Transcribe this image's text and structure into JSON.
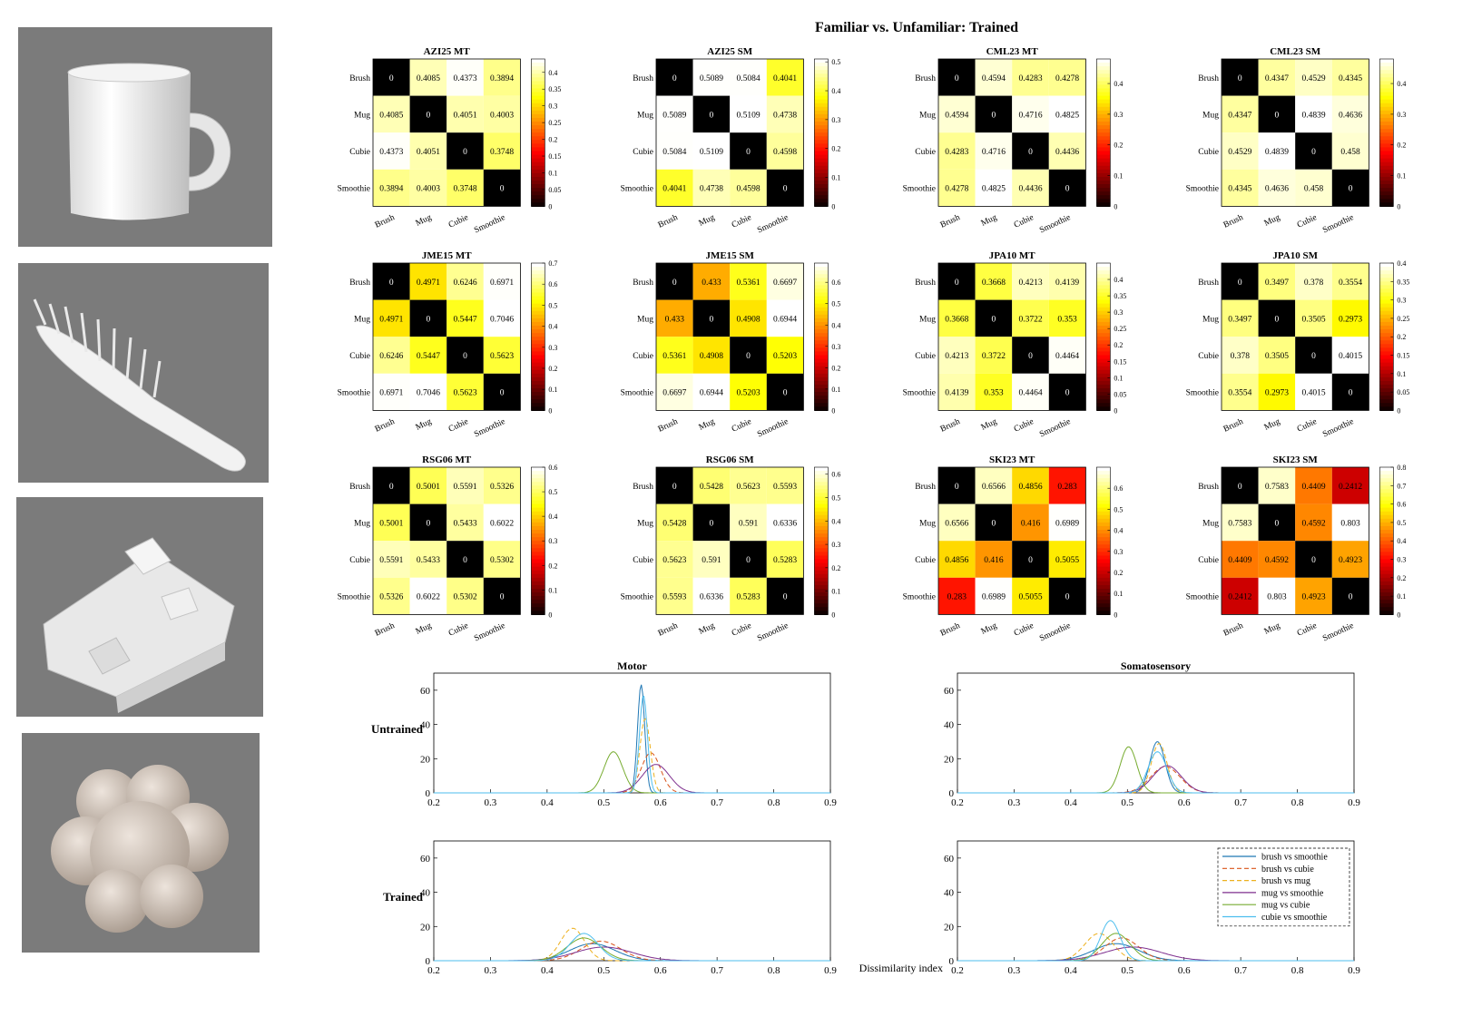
{
  "page_title": "Familiar vs. Unfamiliar: Trained",
  "photos": [
    {
      "name": "mug",
      "icon": "mug-photo"
    },
    {
      "name": "brush",
      "icon": "brush-photo"
    },
    {
      "name": "cubie",
      "icon": "cubie-photo"
    },
    {
      "name": "smoothie",
      "icon": "smoothie-photo"
    }
  ],
  "chart_data": [
    {
      "type": "heatmap",
      "title": "AZI25 MT",
      "labels": [
        "Brush",
        "Mug",
        "Cubie",
        "Smoothie"
      ],
      "matrix": [
        [
          0,
          0.4085,
          0.4373,
          0.3894
        ],
        [
          0.4085,
          0,
          0.4051,
          0.4003
        ],
        [
          0.4373,
          0.4051,
          0,
          0.3748
        ],
        [
          0.3894,
          0.4003,
          0.3748,
          0
        ]
      ],
      "cbar_ticks": [
        "0.4",
        "0.35",
        "0.3",
        "0.25",
        "0.2",
        "0.15",
        "0.1",
        "0.05",
        "0"
      ],
      "cmax": 0.44
    },
    {
      "type": "heatmap",
      "title": "AZI25 SM",
      "labels": [
        "Brush",
        "Mug",
        "Cubie",
        "Smoothie"
      ],
      "matrix": [
        [
          0,
          0.5089,
          0.5084,
          0.4041
        ],
        [
          0.5089,
          0,
          0.5109,
          0.4738
        ],
        [
          0.5084,
          0.5109,
          0,
          0.4598
        ],
        [
          0.4041,
          0.4738,
          0.4598,
          0
        ]
      ],
      "cbar_ticks": [
        "0.5",
        "0.4",
        "0.3",
        "0.2",
        "0.1",
        "0"
      ],
      "cmax": 0.51
    },
    {
      "type": "heatmap",
      "title": "CML23 MT",
      "labels": [
        "Brush",
        "Mug",
        "Cubie",
        "Smoothie"
      ],
      "matrix": [
        [
          0,
          0.4594,
          0.4283,
          0.4278
        ],
        [
          0.4594,
          0,
          0.4716,
          0.4825
        ],
        [
          0.4283,
          0.4716,
          0,
          0.4436
        ],
        [
          0.4278,
          0.4825,
          0.4436,
          0
        ]
      ],
      "cbar_ticks": [
        "0.4",
        "0.3",
        "0.2",
        "0.1",
        "0"
      ],
      "cmax": 0.48
    },
    {
      "type": "heatmap",
      "title": "CML23 SM",
      "labels": [
        "Brush",
        "Mug",
        "Cubie",
        "Smoothie"
      ],
      "matrix": [
        [
          0,
          0.4347,
          0.4529,
          0.4345
        ],
        [
          0.4347,
          0,
          0.4839,
          0.4636
        ],
        [
          0.4529,
          0.4839,
          0,
          0.458
        ],
        [
          0.4345,
          0.4636,
          0.458,
          0
        ]
      ],
      "cbar_ticks": [
        "0.4",
        "0.3",
        "0.2",
        "0.1",
        "0"
      ],
      "cmax": 0.48
    },
    {
      "type": "heatmap",
      "title": "JME15 MT",
      "labels": [
        "Brush",
        "Mug",
        "Cubie",
        "Smoothie"
      ],
      "matrix": [
        [
          0,
          0.4971,
          0.6246,
          0.6971
        ],
        [
          0.4971,
          0,
          0.5447,
          0.7046
        ],
        [
          0.6246,
          0.5447,
          0,
          0.5623
        ],
        [
          0.6971,
          0.7046,
          0.5623,
          0
        ]
      ],
      "cbar_ticks": [
        "0.7",
        "0.6",
        "0.5",
        "0.4",
        "0.3",
        "0.2",
        "0.1",
        "0"
      ],
      "cmax": 0.7
    },
    {
      "type": "heatmap",
      "title": "JME15 SM",
      "labels": [
        "Brush",
        "Mug",
        "Cubie",
        "Smoothie"
      ],
      "matrix": [
        [
          0,
          0.433,
          0.5361,
          0.6697
        ],
        [
          0.433,
          0,
          0.4908,
          0.6944
        ],
        [
          0.5361,
          0.4908,
          0,
          0.5203
        ],
        [
          0.6697,
          0.6944,
          0.5203,
          0
        ]
      ],
      "cbar_ticks": [
        "0.6",
        "0.5",
        "0.4",
        "0.3",
        "0.2",
        "0.1",
        "0"
      ],
      "cmax": 0.69
    },
    {
      "type": "heatmap",
      "title": "JPA10 MT",
      "labels": [
        "Brush",
        "Mug",
        "Cubie",
        "Smoothie"
      ],
      "matrix": [
        [
          0,
          0.3668,
          0.4213,
          0.4139
        ],
        [
          0.3668,
          0,
          0.3722,
          0.353
        ],
        [
          0.4213,
          0.3722,
          0,
          0.4464
        ],
        [
          0.4139,
          0.353,
          0.4464,
          0
        ]
      ],
      "cbar_ticks": [
        "0.4",
        "0.35",
        "0.3",
        "0.25",
        "0.2",
        "0.15",
        "0.1",
        "0.05",
        "0"
      ],
      "cmax": 0.45
    },
    {
      "type": "heatmap",
      "title": "JPA10 SM",
      "labels": [
        "Brush",
        "Mug",
        "Cubie",
        "Smoothie"
      ],
      "matrix": [
        [
          0,
          0.3497,
          0.378,
          0.3554
        ],
        [
          0.3497,
          0,
          0.3505,
          0.2973
        ],
        [
          0.378,
          0.3505,
          0,
          0.4015
        ],
        [
          0.3554,
          0.2973,
          0.4015,
          0
        ]
      ],
      "cbar_ticks": [
        "0.4",
        "0.35",
        "0.3",
        "0.25",
        "0.2",
        "0.15",
        "0.1",
        "0.05",
        "0"
      ],
      "cmax": 0.4
    },
    {
      "type": "heatmap",
      "title": "RSG06 MT",
      "labels": [
        "Brush",
        "Mug",
        "Cubie",
        "Smoothie"
      ],
      "matrix": [
        [
          0,
          0.5001,
          0.5591,
          0.5326
        ],
        [
          0.5001,
          0,
          0.5433,
          0.6022
        ],
        [
          0.5591,
          0.5433,
          0,
          0.5302
        ],
        [
          0.5326,
          0.6022,
          0.5302,
          0
        ]
      ],
      "cbar_ticks": [
        "0.6",
        "0.5",
        "0.4",
        "0.3",
        "0.2",
        "0.1",
        "0"
      ],
      "cmax": 0.6
    },
    {
      "type": "heatmap",
      "title": "RSG06 SM",
      "labels": [
        "Brush",
        "Mug",
        "Cubie",
        "Smoothie"
      ],
      "matrix": [
        [
          0,
          0.5428,
          0.5623,
          0.5593
        ],
        [
          0.5428,
          0,
          0.591,
          0.6336
        ],
        [
          0.5623,
          0.591,
          0,
          0.5283
        ],
        [
          0.5593,
          0.6336,
          0.5283,
          0
        ]
      ],
      "cbar_ticks": [
        "0.6",
        "0.5",
        "0.4",
        "0.3",
        "0.2",
        "0.1",
        "0"
      ],
      "cmax": 0.63
    },
    {
      "type": "heatmap",
      "title": "SKI23 MT",
      "labels": [
        "Brush",
        "Mug",
        "Cubie",
        "Smoothie"
      ],
      "matrix": [
        [
          0,
          0.6566,
          0.4856,
          0.283
        ],
        [
          0.6566,
          0,
          0.416,
          0.6989
        ],
        [
          0.4856,
          0.416,
          0,
          0.5055
        ],
        [
          0.283,
          0.6989,
          0.5055,
          0
        ]
      ],
      "cbar_ticks": [
        "0.6",
        "0.5",
        "0.4",
        "0.3",
        "0.2",
        "0.1",
        "0"
      ],
      "cmax": 0.7
    },
    {
      "type": "heatmap",
      "title": "SKI23 SM",
      "labels": [
        "Brush",
        "Mug",
        "Cubie",
        "Smoothie"
      ],
      "matrix": [
        [
          0,
          0.7583,
          0.4409,
          0.2412
        ],
        [
          0.7583,
          0,
          0.4592,
          0.803
        ],
        [
          0.4409,
          0.4592,
          0,
          0.4923
        ],
        [
          0.2412,
          0.803,
          0.4923,
          0
        ]
      ],
      "cbar_ticks": [
        "0.8",
        "0.7",
        "0.6",
        "0.5",
        "0.4",
        "0.3",
        "0.2",
        "0.1",
        "0"
      ],
      "cmax": 0.8
    },
    {
      "type": "line",
      "title": "Motor",
      "row_label": "Untrained",
      "xlim": [
        0.2,
        0.9
      ],
      "ylim": [
        0,
        70
      ],
      "xticks": [
        "0.2",
        "0.3",
        "0.4",
        "0.5",
        "0.6",
        "0.7",
        "0.8",
        "0.9"
      ],
      "yticks": [
        "0",
        "20",
        "40",
        "60"
      ],
      "series": [
        {
          "name": "brush vs smoothie",
          "color": "#1f77b4",
          "dash": "",
          "mu": 0.566,
          "sigma": 0.0063
        },
        {
          "name": "brush vs cubie",
          "color": "#d95319",
          "dash": "5,3",
          "mu": 0.583,
          "sigma": 0.017
        },
        {
          "name": "brush vs mug",
          "color": "#edb120",
          "dash": "5,3",
          "mu": 0.573,
          "sigma": 0.0092
        },
        {
          "name": "mug vs smoothie",
          "color": "#7e2f8e",
          "dash": "",
          "mu": 0.592,
          "sigma": 0.024
        },
        {
          "name": "mug vs cubie",
          "color": "#77ac30",
          "dash": "",
          "mu": 0.517,
          "sigma": 0.0166
        },
        {
          "name": "cubie vs smoothie",
          "color": "#4dbeee",
          "dash": "",
          "mu": 0.57,
          "sigma": 0.007
        }
      ]
    },
    {
      "type": "line",
      "title": "Somatosensory",
      "row_label": "",
      "xlim": [
        0.2,
        0.9
      ],
      "ylim": [
        0,
        70
      ],
      "xticks": [
        "0.2",
        "0.3",
        "0.4",
        "0.5",
        "0.6",
        "0.7",
        "0.8",
        "0.9"
      ],
      "yticks": [
        "0",
        "20",
        "40",
        "60"
      ],
      "series": [
        {
          "name": "brush vs smoothie",
          "color": "#1f77b4",
          "dash": "",
          "mu": 0.553,
          "sigma": 0.0133
        },
        {
          "name": "brush vs cubie",
          "color": "#d95319",
          "dash": "5,3",
          "mu": 0.567,
          "sigma": 0.026
        },
        {
          "name": "brush vs mug",
          "color": "#edb120",
          "dash": "5,3",
          "mu": 0.556,
          "sigma": 0.0138
        },
        {
          "name": "mug vs smoothie",
          "color": "#7e2f8e",
          "dash": "",
          "mu": 0.57,
          "sigma": 0.025
        },
        {
          "name": "mug vs cubie",
          "color": "#77ac30",
          "dash": "",
          "mu": 0.502,
          "sigma": 0.0148
        },
        {
          "name": "cubie vs smoothie",
          "color": "#4dbeee",
          "dash": "",
          "mu": 0.553,
          "sigma": 0.0166
        }
      ]
    },
    {
      "type": "line",
      "title": "",
      "row_label": "Trained",
      "xlim": [
        0.2,
        0.9
      ],
      "ylim": [
        0,
        70
      ],
      "xticks": [
        "0.2",
        "0.3",
        "0.4",
        "0.5",
        "0.6",
        "0.7",
        "0.8",
        "0.9"
      ],
      "yticks": [
        "0",
        "20",
        "40",
        "60"
      ],
      "series": [
        {
          "name": "brush vs smoothie",
          "color": "#1f77b4",
          "dash": "",
          "mu": 0.48,
          "sigma": 0.04
        },
        {
          "name": "brush vs cubie",
          "color": "#d95319",
          "dash": "5,3",
          "mu": 0.495,
          "sigma": 0.035
        },
        {
          "name": "brush vs mug",
          "color": "#edb120",
          "dash": "5,3",
          "mu": 0.445,
          "sigma": 0.021
        },
        {
          "name": "mug vs smoothie",
          "color": "#7e2f8e",
          "dash": "",
          "mu": 0.5,
          "sigma": 0.05
        },
        {
          "name": "mug vs cubie",
          "color": "#77ac30",
          "dash": "",
          "mu": 0.465,
          "sigma": 0.03
        },
        {
          "name": "cubie vs smoothie",
          "color": "#4dbeee",
          "dash": "",
          "mu": 0.465,
          "sigma": 0.025
        }
      ]
    },
    {
      "type": "line",
      "title": "",
      "row_label": "",
      "xlabel": "Dissimilarity index",
      "xlim": [
        0.2,
        0.9
      ],
      "ylim": [
        0,
        70
      ],
      "xticks": [
        "0.2",
        "0.3",
        "0.4",
        "0.5",
        "0.6",
        "0.7",
        "0.8",
        "0.9"
      ],
      "yticks": [
        "0",
        "20",
        "40",
        "60"
      ],
      "legend": "top-right",
      "series": [
        {
          "name": "brush vs smoothie",
          "color": "#1f77b4",
          "dash": "",
          "mu": 0.48,
          "sigma": 0.04
        },
        {
          "name": "brush vs cubie",
          "color": "#d95319",
          "dash": "5,3",
          "mu": 0.49,
          "sigma": 0.03
        },
        {
          "name": "brush vs mug",
          "color": "#edb120",
          "dash": "5,3",
          "mu": 0.45,
          "sigma": 0.025
        },
        {
          "name": "mug vs smoothie",
          "color": "#7e2f8e",
          "dash": "",
          "mu": 0.51,
          "sigma": 0.05
        },
        {
          "name": "mug vs cubie",
          "color": "#77ac30",
          "dash": "",
          "mu": 0.48,
          "sigma": 0.025
        },
        {
          "name": "cubie vs smoothie",
          "color": "#4dbeee",
          "dash": "",
          "mu": 0.47,
          "sigma": 0.017
        }
      ]
    }
  ]
}
